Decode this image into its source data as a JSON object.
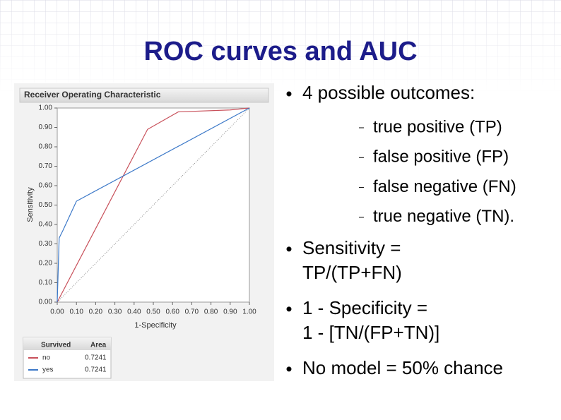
{
  "slide": {
    "title": "ROC curves and AUC",
    "bullets": [
      {
        "lines": [
          "4 possible outcomes:"
        ],
        "subitems": [
          "true positive (TP)",
          "false positive (FP)",
          "false negative (FN)",
          "true negative (TN)."
        ]
      },
      {
        "lines": [
          "Sensitivity =",
          "TP/(TP+FN)"
        ]
      },
      {
        "lines": [
          "1 - Specificity =",
          "1 - [TN/(FP+TN)]"
        ]
      },
      {
        "lines": [
          "No model = 50% chance"
        ]
      }
    ]
  },
  "chart_data": {
    "type": "line",
    "title": "Receiver Operating Characteristic",
    "x_label": "1-Specificity",
    "y_label": "Sensitivity",
    "xlim": [
      0,
      1
    ],
    "ylim": [
      0,
      1
    ],
    "xticks": [
      {
        "value": 0,
        "label": "0.00"
      },
      {
        "value": 0.1,
        "label": "0.10"
      },
      {
        "value": 0.2,
        "label": "0.20"
      },
      {
        "value": 0.3,
        "label": "0.30"
      },
      {
        "value": 0.4,
        "label": "0.40"
      },
      {
        "value": 0.5,
        "label": "0.50"
      },
      {
        "value": 0.6,
        "label": "0.60"
      },
      {
        "value": 0.7,
        "label": "0.70"
      },
      {
        "value": 0.8,
        "label": "0.80"
      },
      {
        "value": 0.9,
        "label": "0.90"
      },
      {
        "value": 1,
        "label": "1.00"
      }
    ],
    "yticks": [
      {
        "value": 0,
        "label": "0.00"
      },
      {
        "value": 0.1,
        "label": "0.10"
      },
      {
        "value": 0.2,
        "label": "0.20"
      },
      {
        "value": 0.3,
        "label": "0.30"
      },
      {
        "value": 0.4,
        "label": "0.40"
      },
      {
        "value": 0.5,
        "label": "0.50"
      },
      {
        "value": 0.6,
        "label": "0.60"
      },
      {
        "value": 0.7,
        "label": "0.70"
      },
      {
        "value": 0.8,
        "label": "0.80"
      },
      {
        "value": 0.9,
        "label": "0.90"
      },
      {
        "value": 1,
        "label": "1.00"
      }
    ],
    "legend_title": "Survived",
    "area_header": "Area",
    "series": [
      {
        "name": "no",
        "color": "#c8505a",
        "x": [
          0,
          0.47,
          0.63,
          0.9,
          1
        ],
        "values": [
          0,
          0.89,
          0.98,
          0.99,
          1
        ],
        "area": 0.7241
      },
      {
        "name": "yes",
        "color": "#3b78c8",
        "x": [
          0,
          0.01,
          0.03,
          0.1,
          1
        ],
        "values": [
          0,
          0.33,
          0.37,
          0.52,
          1
        ],
        "area": 0.7241
      }
    ]
  }
}
